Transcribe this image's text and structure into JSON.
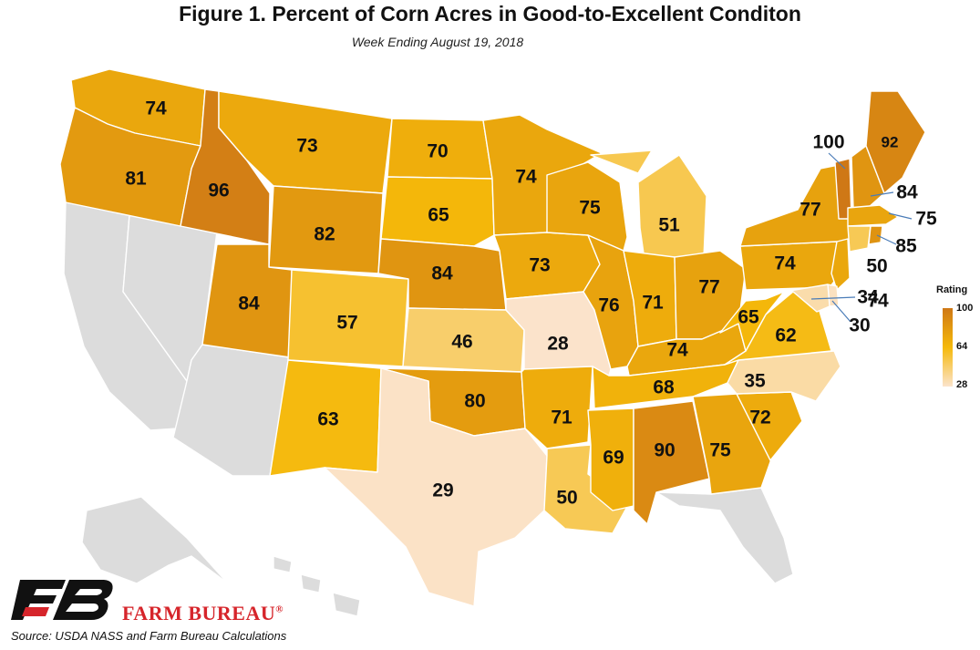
{
  "title": "Figure 1. Percent of Corn Acres in Good-to-Excellent Conditon",
  "subtitle": "Week Ending August 19, 2018",
  "legend": {
    "title": "Rating",
    "max": "100",
    "mid": "64",
    "min": "28"
  },
  "colors": {
    "high": "#cf7816",
    "mid": "#f5b90a",
    "low": "#fbe3cb",
    "no_data": "#dcdcdc",
    "brand_red": "#d6252b"
  },
  "brand": "FARM BUREAU",
  "brand_mark": "®",
  "source": "Source: USDA NASS and Farm Bureau Calculations",
  "states": {
    "WA": 74,
    "OR": 81,
    "ID": 96,
    "MT": 73,
    "WY": 82,
    "UT": 84,
    "CO": 57,
    "NM": 63,
    "ND": 70,
    "SD": 65,
    "NE": 84,
    "KS": 46,
    "OK": 80,
    "TX": 29,
    "MN": 74,
    "IA": 73,
    "MO": 28,
    "AR": 71,
    "LA": 50,
    "WI": 75,
    "IL": 76,
    "MI": 51,
    "IN": 71,
    "OH": 77,
    "KY": 74,
    "TN": 68,
    "MS": 69,
    "AL": 90,
    "GA": 75,
    "SC": 72,
    "NC": 35,
    "VA": 62,
    "WV": 65,
    "PA": 74,
    "NY": 77,
    "VT": 100,
    "NH": 84,
    "ME": 92,
    "MA": 75,
    "CT": 50,
    "RI": 85,
    "NJ": 74,
    "DE": 30,
    "MD": 34
  },
  "no_data_states": [
    "CA",
    "NV",
    "AZ",
    "FL",
    "AK",
    "HI"
  ]
}
